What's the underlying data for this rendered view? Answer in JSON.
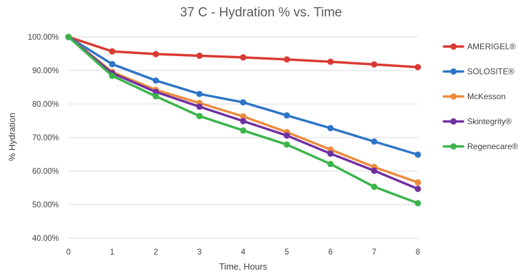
{
  "chart_data": {
    "type": "line",
    "title": "37 C - Hydration % vs. Time",
    "xlabel": "Time, Hours",
    "ylabel": "% Hydration",
    "x": [
      0,
      1,
      2,
      3,
      4,
      5,
      6,
      7,
      8
    ],
    "ylim": [
      40,
      100
    ],
    "yticks": [
      40,
      50,
      60,
      70,
      80,
      90,
      100
    ],
    "ytick_labels": [
      "40.00%",
      "50.00%",
      "60.00%",
      "70.00%",
      "80.00%",
      "90.00%",
      "100.00%"
    ],
    "xtick_labels": [
      "0",
      "1",
      "2",
      "3",
      "4",
      "5",
      "6",
      "7",
      "8"
    ],
    "grid": "horizontal",
    "legend_position": "right",
    "series": [
      {
        "name": "AMERIGEL®",
        "color": "#d93a32",
        "values": [
          100,
          95.7,
          94.9,
          94.4,
          93.9,
          93.3,
          92.6,
          91.8,
          91.0
        ]
      },
      {
        "name": "SOLOSITE®",
        "color": "#2e75c8",
        "values": [
          100,
          91.9,
          87.0,
          83.0,
          80.5,
          76.6,
          72.8,
          68.8,
          64.9
        ]
      },
      {
        "name": "McKesson",
        "color": "#ef8a3c",
        "values": [
          100,
          89.6,
          84.2,
          80.3,
          76.3,
          71.6,
          66.4,
          61.2,
          56.6
        ]
      },
      {
        "name": "Skintegrity®",
        "color": "#7030a0",
        "values": [
          100,
          89.2,
          83.6,
          79.2,
          74.9,
          70.6,
          65.2,
          60.1,
          54.7
        ]
      },
      {
        "name": "Regenecare®",
        "color": "#3cb44b",
        "values": [
          100,
          88.4,
          82.3,
          76.4,
          72.1,
          67.9,
          62.1,
          55.3,
          50.4
        ]
      }
    ]
  }
}
